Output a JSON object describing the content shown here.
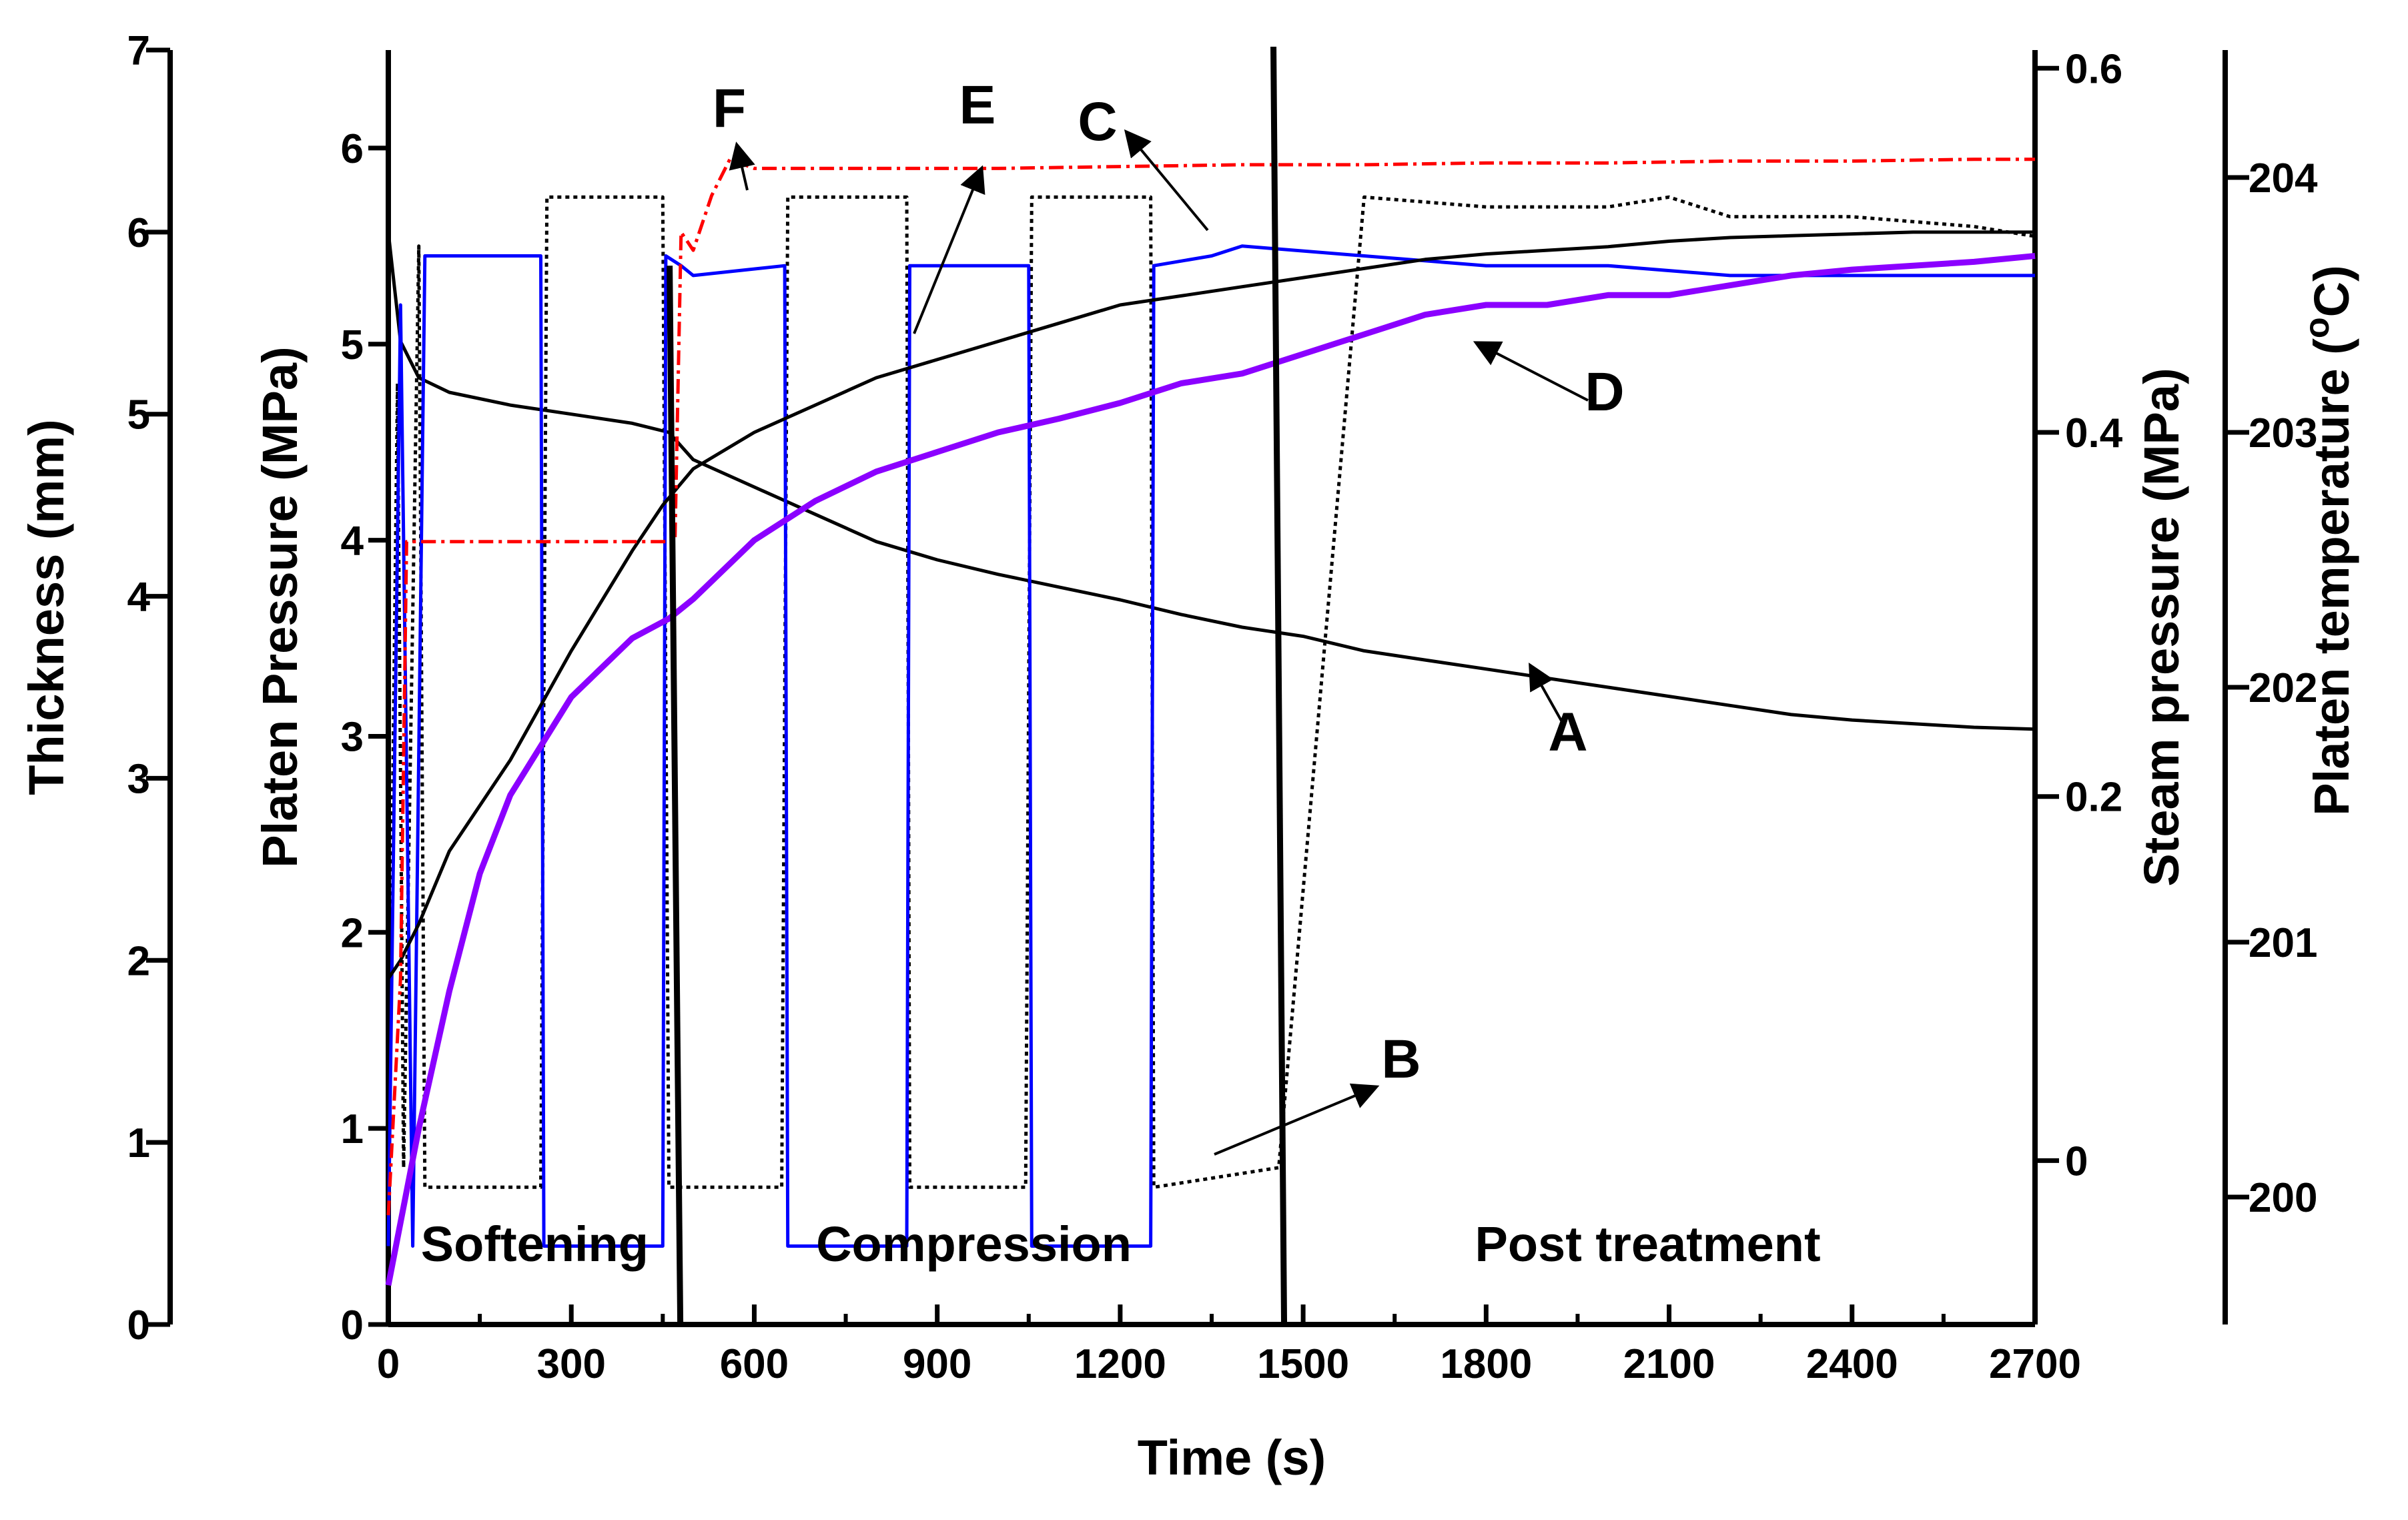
{
  "chart_data": {
    "type": "line",
    "xlabel": "Time (s)",
    "xlim": [
      0,
      2700
    ],
    "xticks": [
      0,
      300,
      600,
      900,
      1200,
      1500,
      1800,
      2100,
      2400,
      2700
    ],
    "axes": {
      "thickness": {
        "label": "Thickness (mm)",
        "ylim": [
          0,
          7
        ],
        "ticks": [
          0,
          1,
          2,
          3,
          4,
          5,
          6,
          7
        ]
      },
      "platen_pressure": {
        "label": "Platen Pressure (MPa)",
        "ylim": [
          0,
          6.5
        ],
        "ticks": [
          0,
          1,
          2,
          3,
          4,
          5,
          6
        ]
      },
      "steam_pressure": {
        "label": "Steam pressure (MPa)",
        "ylim": [
          -0.09,
          0.61
        ],
        "ticks": [
          0.0,
          0.2,
          0.4,
          0.6
        ],
        "tick_labels": [
          "0",
          "0.2",
          "0.4",
          "0.6"
        ]
      },
      "platen_temperature": {
        "label_main": "Platen temperature (",
        "label_sup": "o",
        "label_end": "C)",
        "ylim": [
          199.5,
          204.5
        ],
        "ticks": [
          200,
          201,
          202,
          203,
          204
        ]
      }
    },
    "phases": [
      {
        "label": "Softening",
        "x_mid": 240
      },
      {
        "label": "Compression",
        "x_mid": 960
      },
      {
        "label": "Post treatment",
        "x_mid": 2065
      }
    ],
    "phase_boundaries": [
      470,
      1460
    ],
    "series": [
      {
        "key": "A",
        "color": "#000000",
        "axis": "thickness",
        "style": "solid",
        "x": [
          0,
          10,
          20,
          50,
          100,
          200,
          300,
          400,
          460,
          500,
          600,
          700,
          800,
          900,
          1000,
          1100,
          1200,
          1300,
          1400,
          1500,
          1600,
          1700,
          1800,
          1900,
          2000,
          2100,
          2200,
          2300,
          2400,
          2500,
          2600,
          2700
        ],
        "y": [
          6.0,
          5.7,
          5.4,
          5.2,
          5.12,
          5.05,
          5.0,
          4.95,
          4.9,
          4.75,
          4.6,
          4.45,
          4.3,
          4.2,
          4.12,
          4.05,
          3.98,
          3.9,
          3.83,
          3.78,
          3.7,
          3.65,
          3.6,
          3.55,
          3.5,
          3.45,
          3.4,
          3.35,
          3.32,
          3.3,
          3.28,
          3.27
        ]
      },
      {
        "key": "B",
        "color": "#000000",
        "axis": "platen_pressure",
        "style": "dotted",
        "x": [
          0,
          15,
          25,
          50,
          60,
          250,
          260,
          450,
          460,
          645,
          655,
          850,
          855,
          1045,
          1055,
          1250,
          1255,
          1460,
          1600,
          1800,
          2000,
          2100,
          2200,
          2400,
          2600,
          2700
        ],
        "y": [
          0.8,
          4.8,
          0.8,
          5.5,
          0.7,
          0.7,
          5.75,
          5.75,
          0.7,
          0.7,
          5.75,
          5.75,
          0.7,
          0.7,
          5.75,
          5.75,
          0.7,
          0.8,
          5.75,
          5.7,
          5.7,
          5.75,
          5.65,
          5.65,
          5.6,
          5.55
        ]
      },
      {
        "key": "C",
        "color": "#0000ff",
        "axis": "platen_pressure",
        "style": "solid",
        "x": [
          0,
          20,
          40,
          60,
          100,
          250,
          255,
          450,
          455,
          480,
          500,
          650,
          655,
          850,
          855,
          1050,
          1055,
          1250,
          1255,
          1350,
          1400,
          1600,
          1800,
          2000,
          2200,
          2400,
          2600,
          2700
        ],
        "y": [
          0.4,
          5.2,
          0.4,
          5.45,
          5.45,
          5.45,
          0.4,
          0.4,
          5.45,
          5.4,
          5.35,
          5.4,
          0.4,
          0.4,
          5.4,
          5.4,
          0.4,
          0.4,
          5.4,
          5.45,
          5.5,
          5.45,
          5.4,
          5.4,
          5.35,
          5.35,
          5.35,
          5.35
        ]
      },
      {
        "key": "D",
        "color": "#8b00ff",
        "axis": "platen_pressure",
        "style": "solid",
        "x": [
          0,
          50,
          100,
          150,
          200,
          300,
          400,
          460,
          500,
          600,
          700,
          800,
          900,
          1000,
          1100,
          1200,
          1300,
          1400,
          1500,
          1600,
          1700,
          1800,
          1900,
          2000,
          2100,
          2200,
          2300,
          2400,
          2500,
          2600,
          2700
        ],
        "y": [
          0.2,
          1.0,
          1.7,
          2.3,
          2.7,
          3.2,
          3.5,
          3.6,
          3.7,
          4.0,
          4.2,
          4.35,
          4.45,
          4.55,
          4.62,
          4.7,
          4.8,
          4.85,
          4.95,
          5.05,
          5.15,
          5.2,
          5.2,
          5.25,
          5.25,
          5.3,
          5.35,
          5.38,
          5.4,
          5.42,
          5.45
        ]
      },
      {
        "key": "E",
        "color": "#000000",
        "axis": "thickness",
        "style": "solid",
        "x": [
          0,
          20,
          50,
          100,
          200,
          300,
          400,
          450,
          500,
          600,
          700,
          800,
          900,
          1000,
          1100,
          1200,
          1300,
          1400,
          1500,
          1600,
          1700,
          1800,
          1900,
          2000,
          2100,
          2200,
          2300,
          2400,
          2500,
          2600,
          2700
        ],
        "y": [
          1.9,
          2.0,
          2.2,
          2.6,
          3.1,
          3.7,
          4.25,
          4.5,
          4.7,
          4.9,
          5.05,
          5.2,
          5.3,
          5.4,
          5.5,
          5.6,
          5.65,
          5.7,
          5.75,
          5.8,
          5.85,
          5.88,
          5.9,
          5.92,
          5.95,
          5.97,
          5.98,
          5.99,
          6.0,
          6.0,
          6.0
        ]
      },
      {
        "key": "F",
        "color": "#ff0000",
        "axis": "steam_pressure",
        "style": "dashdot",
        "x": [
          0,
          20,
          30,
          80,
          100,
          150,
          200,
          250,
          300,
          350,
          400,
          450,
          470,
          480,
          500,
          530,
          560,
          600,
          700,
          800,
          1000,
          1200,
          1400,
          1600,
          1800,
          2000,
          2200,
          2400,
          2600,
          2700
        ],
        "y": [
          -0.03,
          0.1,
          0.34,
          0.34,
          0.34,
          0.34,
          0.34,
          0.34,
          0.34,
          0.34,
          0.34,
          0.34,
          0.34,
          0.51,
          0.5,
          0.53,
          0.55,
          0.545,
          0.545,
          0.545,
          0.545,
          0.546,
          0.547,
          0.547,
          0.548,
          0.548,
          0.549,
          0.549,
          0.55,
          0.55
        ]
      }
    ]
  }
}
